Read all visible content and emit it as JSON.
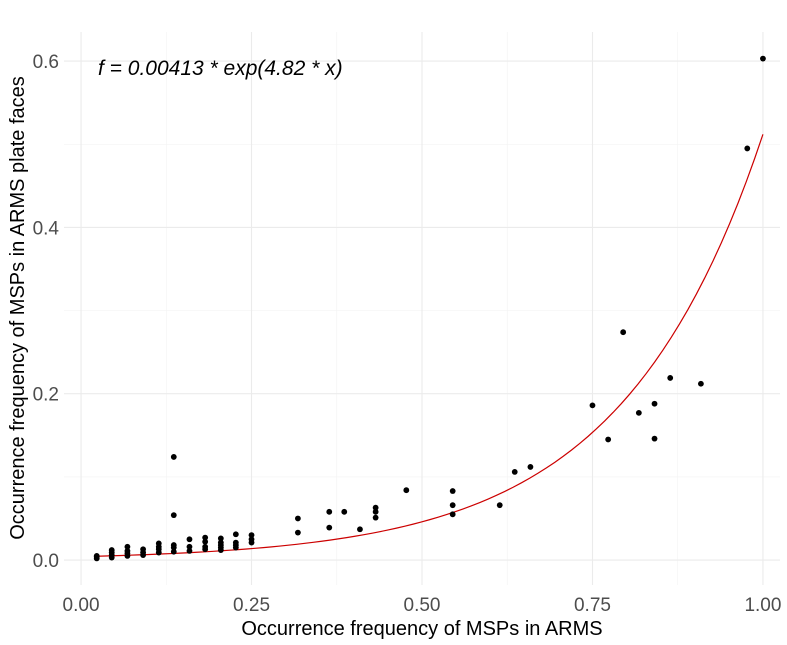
{
  "chart_data": {
    "type": "scatter",
    "annotation": "f = 0.00413 * exp(4.82 * x)",
    "xlabel": "Occurrence frequency of MSPs in ARMS",
    "ylabel": "Occurrence frequency of MSPs in ARMS plate faces",
    "xlim": [
      -0.025,
      1.025
    ],
    "ylim": [
      -0.03,
      0.635
    ],
    "x_ticks": [
      0.0,
      0.25,
      0.5,
      0.75,
      1.0
    ],
    "x_tick_labels": [
      "0.00",
      "0.25",
      "0.50",
      "0.75",
      "1.00"
    ],
    "y_ticks": [
      0.0,
      0.2,
      0.4,
      0.6
    ],
    "y_tick_labels": [
      "0.0",
      "0.2",
      "0.4",
      "0.6"
    ],
    "grid": true,
    "legend": "none",
    "colors": {
      "points": "#000000",
      "fit_line": "#cc0000",
      "grid": "#ebebeb"
    },
    "fit": {
      "a": 0.00413,
      "b": 4.82,
      "x_range": [
        0.023,
        1.0
      ]
    },
    "points": [
      {
        "x": 0.023,
        "y": 0.002
      },
      {
        "x": 0.023,
        "y": 0.004
      },
      {
        "x": 0.023,
        "y": 0.005
      },
      {
        "x": 0.045,
        "y": 0.003
      },
      {
        "x": 0.045,
        "y": 0.006
      },
      {
        "x": 0.045,
        "y": 0.009
      },
      {
        "x": 0.045,
        "y": 0.012
      },
      {
        "x": 0.068,
        "y": 0.005
      },
      {
        "x": 0.068,
        "y": 0.008
      },
      {
        "x": 0.068,
        "y": 0.011
      },
      {
        "x": 0.068,
        "y": 0.016
      },
      {
        "x": 0.091,
        "y": 0.006
      },
      {
        "x": 0.091,
        "y": 0.009
      },
      {
        "x": 0.091,
        "y": 0.013
      },
      {
        "x": 0.114,
        "y": 0.009
      },
      {
        "x": 0.114,
        "y": 0.013
      },
      {
        "x": 0.114,
        "y": 0.016
      },
      {
        "x": 0.114,
        "y": 0.02
      },
      {
        "x": 0.136,
        "y": 0.01
      },
      {
        "x": 0.136,
        "y": 0.015
      },
      {
        "x": 0.136,
        "y": 0.018
      },
      {
        "x": 0.136,
        "y": 0.054
      },
      {
        "x": 0.136,
        "y": 0.124
      },
      {
        "x": 0.159,
        "y": 0.011
      },
      {
        "x": 0.159,
        "y": 0.016
      },
      {
        "x": 0.159,
        "y": 0.025
      },
      {
        "x": 0.182,
        "y": 0.013
      },
      {
        "x": 0.182,
        "y": 0.016
      },
      {
        "x": 0.182,
        "y": 0.022
      },
      {
        "x": 0.182,
        "y": 0.027
      },
      {
        "x": 0.205,
        "y": 0.012
      },
      {
        "x": 0.205,
        "y": 0.015
      },
      {
        "x": 0.205,
        "y": 0.018
      },
      {
        "x": 0.205,
        "y": 0.021
      },
      {
        "x": 0.205,
        "y": 0.026
      },
      {
        "x": 0.227,
        "y": 0.015
      },
      {
        "x": 0.227,
        "y": 0.018
      },
      {
        "x": 0.227,
        "y": 0.021
      },
      {
        "x": 0.227,
        "y": 0.031
      },
      {
        "x": 0.25,
        "y": 0.021
      },
      {
        "x": 0.25,
        "y": 0.025
      },
      {
        "x": 0.25,
        "y": 0.03
      },
      {
        "x": 0.318,
        "y": 0.033
      },
      {
        "x": 0.318,
        "y": 0.05
      },
      {
        "x": 0.364,
        "y": 0.039
      },
      {
        "x": 0.364,
        "y": 0.058
      },
      {
        "x": 0.386,
        "y": 0.058
      },
      {
        "x": 0.409,
        "y": 0.037
      },
      {
        "x": 0.432,
        "y": 0.051
      },
      {
        "x": 0.432,
        "y": 0.058
      },
      {
        "x": 0.432,
        "y": 0.063
      },
      {
        "x": 0.477,
        "y": 0.084
      },
      {
        "x": 0.545,
        "y": 0.055
      },
      {
        "x": 0.545,
        "y": 0.066
      },
      {
        "x": 0.545,
        "y": 0.083
      },
      {
        "x": 0.614,
        "y": 0.066
      },
      {
        "x": 0.636,
        "y": 0.106
      },
      {
        "x": 0.659,
        "y": 0.112
      },
      {
        "x": 0.75,
        "y": 0.186
      },
      {
        "x": 0.773,
        "y": 0.145
      },
      {
        "x": 0.795,
        "y": 0.274
      },
      {
        "x": 0.818,
        "y": 0.177
      },
      {
        "x": 0.841,
        "y": 0.146
      },
      {
        "x": 0.841,
        "y": 0.188
      },
      {
        "x": 0.864,
        "y": 0.219
      },
      {
        "x": 0.909,
        "y": 0.212
      },
      {
        "x": 0.977,
        "y": 0.495
      },
      {
        "x": 1.0,
        "y": 0.603
      }
    ]
  }
}
